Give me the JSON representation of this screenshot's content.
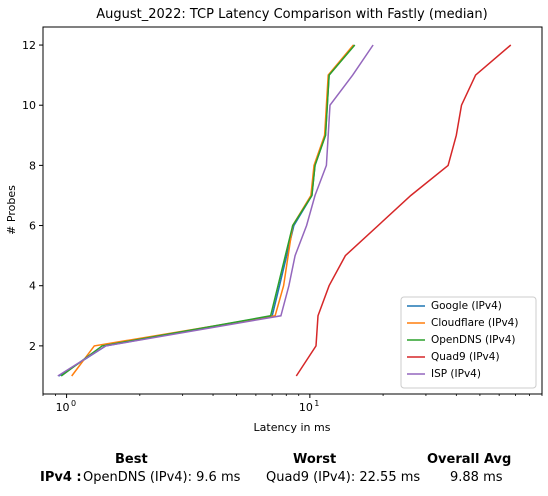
{
  "chart_data": {
    "type": "line",
    "title": "August_2022: TCP Latency Comparison with Fastly (median)",
    "xlabel": "Latency in ms",
    "ylabel": "# Probes",
    "xscale": "log",
    "xlim": [
      0.8,
      90
    ],
    "ylim": [
      0.4,
      12.6
    ],
    "xticks": [
      {
        "value": 1,
        "label": "10",
        "sup": "0"
      },
      {
        "value": 10,
        "label": "10",
        "sup": "1"
      }
    ],
    "yticks": [
      2,
      4,
      6,
      8,
      10,
      12
    ],
    "grid": false,
    "legend_position": "bottom-right",
    "series": [
      {
        "name": "Google (IPv4)",
        "color": "#1f77b4",
        "x": [
          0.93,
          1.45,
          7.0,
          7.5,
          8.6,
          10.2,
          10.5,
          11.6,
          11.8,
          12.0,
          15.2
        ],
        "y": [
          1,
          2,
          3,
          4,
          6,
          7,
          8,
          9,
          10,
          11,
          12
        ]
      },
      {
        "name": "Cloudflare (IPv4)",
        "color": "#ff7f0e",
        "x": [
          1.05,
          1.3,
          7.2,
          7.8,
          8.5,
          10.1,
          10.4,
          11.5,
          11.7,
          11.9,
          15.1
        ],
        "y": [
          1,
          2,
          3,
          4,
          6,
          7,
          8,
          9,
          10,
          11,
          12
        ]
      },
      {
        "name": "OpenDNS (IPv4)",
        "color": "#2ca02c",
        "x": [
          0.95,
          1.4,
          6.9,
          7.4,
          8.5,
          10.2,
          10.5,
          11.6,
          11.8,
          12.0,
          15.3
        ],
        "y": [
          1,
          2,
          3,
          4,
          6,
          7,
          8,
          9,
          10,
          11,
          12
        ]
      },
      {
        "name": "Quad9 (IPv4)",
        "color": "#d62728",
        "x": [
          8.8,
          10.6,
          10.8,
          12.0,
          14.0,
          26.0,
          37.0,
          40.0,
          42.0,
          48.0,
          67.0
        ],
        "y": [
          1,
          2,
          3,
          4,
          5,
          7,
          8,
          9,
          10,
          11,
          12
        ]
      },
      {
        "name": "ISP (IPv4)",
        "color": "#9467bd",
        "x": [
          0.92,
          1.45,
          7.6,
          8.2,
          8.7,
          9.7,
          10.5,
          11.7,
          12.1,
          15.0,
          18.2
        ],
        "y": [
          1,
          2,
          3,
          4,
          5,
          6,
          7,
          8,
          10,
          11,
          12
        ]
      }
    ]
  },
  "summary": {
    "headers": {
      "best": "Best",
      "worst": "Worst",
      "avg": "Overall Avg"
    },
    "row_label": "IPv4 :",
    "best": "OpenDNS (IPv4): 9.6 ms",
    "worst": "Quad9 (IPv4): 22.55 ms",
    "avg": "9.88 ms"
  }
}
